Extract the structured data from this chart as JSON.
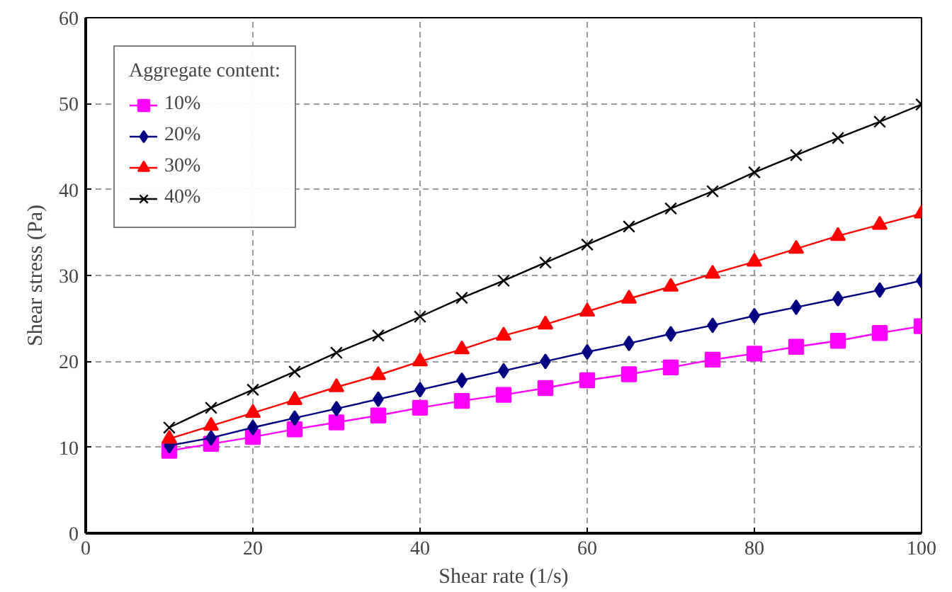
{
  "chart_data": {
    "type": "line",
    "xlabel": "Shear rate (1/s)",
    "ylabel": "Shear stress (Pa)",
    "legend_title": "Aggregate content:",
    "x": [
      10,
      15,
      20,
      25,
      30,
      35,
      40,
      45,
      50,
      55,
      60,
      65,
      70,
      75,
      80,
      85,
      90,
      95,
      100
    ],
    "series": [
      {
        "name": "10%",
        "color": "#ff00ff",
        "marker": "square",
        "values": [
          9.6,
          10.4,
          11.2,
          12.1,
          12.9,
          13.7,
          14.6,
          15.4,
          16.1,
          16.9,
          17.8,
          18.5,
          19.3,
          20.2,
          20.9,
          21.7,
          22.4,
          23.3,
          24.1
        ]
      },
      {
        "name": "20%",
        "color": "#000080",
        "marker": "diamond",
        "values": [
          10.2,
          11.1,
          12.3,
          13.4,
          14.5,
          15.6,
          16.7,
          17.8,
          18.9,
          20.0,
          21.1,
          22.1,
          23.2,
          24.2,
          25.3,
          26.3,
          27.3,
          28.3,
          29.4
        ]
      },
      {
        "name": "30%",
        "color": "#ff0000",
        "marker": "triangle",
        "values": [
          11.0,
          12.5,
          14.0,
          15.5,
          17.0,
          18.4,
          20.0,
          21.4,
          23.0,
          24.3,
          25.8,
          27.3,
          28.7,
          30.2,
          31.6,
          33.1,
          34.6,
          35.9,
          37.2
        ]
      },
      {
        "name": "40%",
        "color": "#000000",
        "marker": "cross",
        "values": [
          12.3,
          14.6,
          16.7,
          18.8,
          21.0,
          23.0,
          25.2,
          27.4,
          29.4,
          31.5,
          33.6,
          35.7,
          37.8,
          39.8,
          42.0,
          44.0,
          46.0,
          47.9,
          49.9
        ]
      }
    ],
    "xlim": [
      0,
      100
    ],
    "xticks": [
      0,
      20,
      40,
      60,
      80,
      100
    ],
    "ylim": [
      0,
      60
    ],
    "yticks": [
      0,
      10,
      20,
      30,
      40,
      50,
      60
    ],
    "grid": true,
    "legend": "top left",
    "line_style": "solid"
  }
}
